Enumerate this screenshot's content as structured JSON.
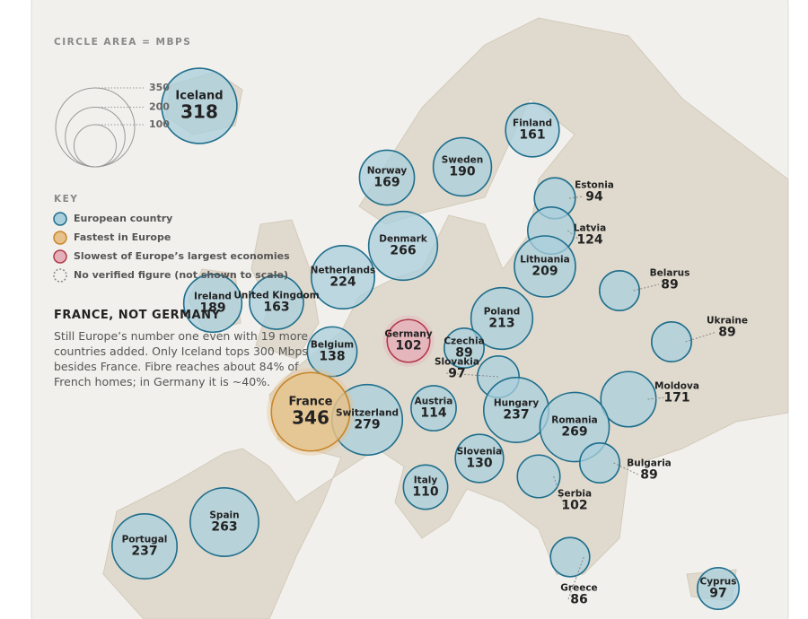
{
  "legend": {
    "title": "CIRCLE AREA = MBPS",
    "sizes": [
      350,
      200,
      100
    ]
  },
  "key": {
    "title": "KEY",
    "items": [
      {
        "label": "European country",
        "color": "#a9cfdc",
        "stroke": "#1f6e8c"
      },
      {
        "label": "Fastest in Europe",
        "color": "#e6c18a",
        "stroke": "#c8862a"
      },
      {
        "label": "Slowest of Europe’s largest economies",
        "color": "#e5b0b9",
        "stroke": "#b03a4a"
      },
      {
        "label": "No verified figure (not shown to scale)",
        "color": "none",
        "stroke": "#888"
      }
    ]
  },
  "story": {
    "title": "FRANCE, NOT GERMANY",
    "text": "Still Europe’s number one even with 19 more countries added. Only Iceland tops 300 Mbps besides France. Fibre reaches about 84% of French homes; in Germany it is ~40%."
  },
  "countries": [
    {
      "name": "Iceland",
      "mbps": 318,
      "color": "#a9cfdc"
    },
    {
      "name": "Finland",
      "mbps": 161,
      "color": "#a9cfdc"
    },
    {
      "name": "Sweden",
      "mbps": 190,
      "color": "#a9cfdc"
    },
    {
      "name": "Norway",
      "mbps": 169,
      "color": "#a9cfdc"
    },
    {
      "name": "Estonia",
      "mbps": 94,
      "color": "#a9cfdc"
    },
    {
      "name": "Latvia",
      "mbps": 124,
      "color": "#a9cfdc"
    },
    {
      "name": "Denmark",
      "mbps": 266,
      "color": "#a9cfdc"
    },
    {
      "name": "Lithuania",
      "mbps": 209,
      "color": "#a9cfdc"
    },
    {
      "name": "Netherlands",
      "mbps": 224,
      "color": "#a9cfdc"
    },
    {
      "name": "Belarus",
      "mbps": 89,
      "color": "#a9cfdc"
    },
    {
      "name": "Ireland",
      "mbps": 189,
      "color": "#a9cfdc"
    },
    {
      "name": "United Kingdom",
      "mbps": 163,
      "color": "#a9cfdc"
    },
    {
      "name": "Poland",
      "mbps": 213,
      "color": "#a9cfdc"
    },
    {
      "name": "Ukraine",
      "mbps": 89,
      "color": "#a9cfdc"
    },
    {
      "name": "Germany",
      "mbps": 102,
      "color": "#e5b0b9"
    },
    {
      "name": "Belgium",
      "mbps": 138,
      "color": "#a9cfdc"
    },
    {
      "name": "Czechia",
      "mbps": 89,
      "color": "#a9cfdc"
    },
    {
      "name": "Slovakia",
      "mbps": 97,
      "color": "#a9cfdc"
    },
    {
      "name": "Moldova",
      "mbps": 171,
      "color": "#a9cfdc"
    },
    {
      "name": "Switzerland",
      "mbps": 279,
      "color": "#a9cfdc"
    },
    {
      "name": "France",
      "mbps": 346,
      "color": "#e6c18a"
    },
    {
      "name": "Austria",
      "mbps": 114,
      "color": "#a9cfdc"
    },
    {
      "name": "Hungary",
      "mbps": 237,
      "color": "#a9cfdc"
    },
    {
      "name": "Romania",
      "mbps": 269,
      "color": "#a9cfdc"
    },
    {
      "name": "Bulgaria",
      "mbps": 89,
      "color": "#a9cfdc"
    },
    {
      "name": "Slovenia",
      "mbps": 130,
      "color": "#a9cfdc"
    },
    {
      "name": "Serbia",
      "mbps": 102,
      "color": "#a9cfdc"
    },
    {
      "name": "Italy",
      "mbps": 110,
      "color": "#a9cfdc"
    },
    {
      "name": "Spain",
      "mbps": 263,
      "color": "#a9cfdc"
    },
    {
      "name": "Portugal",
      "mbps": 237,
      "color": "#a9cfdc"
    },
    {
      "name": "Greece",
      "mbps": 86,
      "color": "#a9cfdc"
    },
    {
      "name": "Cyprus",
      "mbps": 97,
      "color": "#a9cfdc"
    }
  ]
}
